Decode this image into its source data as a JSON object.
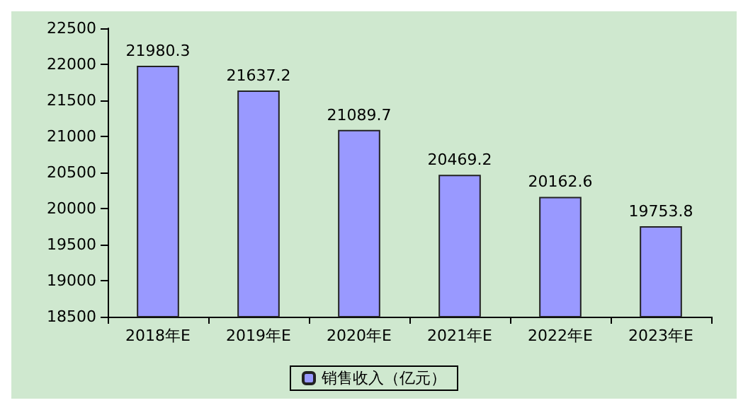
{
  "chart_data": {
    "type": "bar",
    "categories": [
      "2018年E",
      "2019年E",
      "2020年E",
      "2021年E",
      "2022年E",
      "2023年E"
    ],
    "series": [
      {
        "name": "销售收入（亿元）",
        "color": "#9999ff",
        "values": [
          21980.3,
          21637.2,
          21089.7,
          20469.2,
          20162.6,
          19753.8
        ]
      }
    ],
    "ylim": [
      18500,
      22500
    ],
    "yticks": [
      18500,
      19000,
      19500,
      20000,
      20500,
      21000,
      21500,
      22000,
      22500
    ],
    "grid": false,
    "legend": "bottom",
    "data_labels": true
  }
}
